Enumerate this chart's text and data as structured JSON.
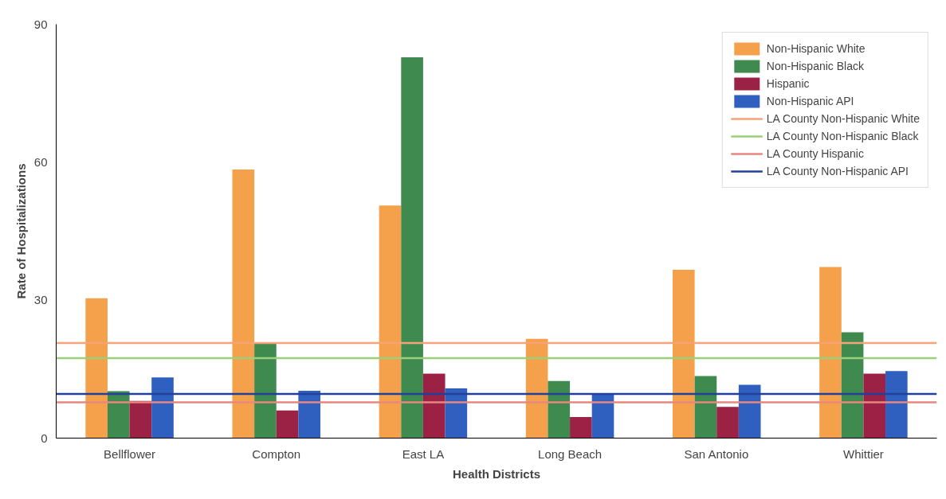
{
  "chart_data": {
    "type": "bar",
    "xlabel": "Health Districts",
    "ylabel": "Rate of Hospitalizations",
    "categories": [
      "Bellflower",
      "Compton",
      "East LA",
      "Long Beach",
      "San Antonio",
      "Whittier"
    ],
    "series": [
      {
        "name": "Non-Hispanic White",
        "color": "#f5a04a",
        "values": [
          30.4,
          58.4,
          50.6,
          21.6,
          36.6,
          37.2
        ]
      },
      {
        "name": "Non-Hispanic Black",
        "color": "#3f8a4f",
        "values": [
          10.2,
          20.7,
          82.8,
          12.4,
          13.5,
          23.0
        ]
      },
      {
        "name": "Hispanic",
        "color": "#9b2145",
        "values": [
          8.1,
          6.0,
          14.0,
          4.6,
          6.8,
          14.0
        ]
      },
      {
        "name": "Non-Hispanic API",
        "color": "#2f5fbf",
        "values": [
          13.2,
          10.3,
          10.8,
          9.5,
          11.6,
          14.6
        ]
      }
    ],
    "ref_lines": [
      {
        "axis": "y",
        "value": 20.7,
        "label": "LA County Non-Hispanic White",
        "color": "#f7a277"
      },
      {
        "axis": "y",
        "value": 17.4,
        "label": "LA County Non-Hispanic Black",
        "color": "#9ccf7a"
      },
      {
        "axis": "y",
        "value": 7.8,
        "label": "LA County Hispanic",
        "color": "#e8877f"
      },
      {
        "axis": "y",
        "value": 9.6,
        "label": "LA County Non-Hispanic API",
        "color": "#22409a"
      }
    ],
    "ylim": [
      0,
      90
    ],
    "yticks": [
      0,
      30,
      60,
      90
    ],
    "grid": false,
    "legend": "top right"
  }
}
